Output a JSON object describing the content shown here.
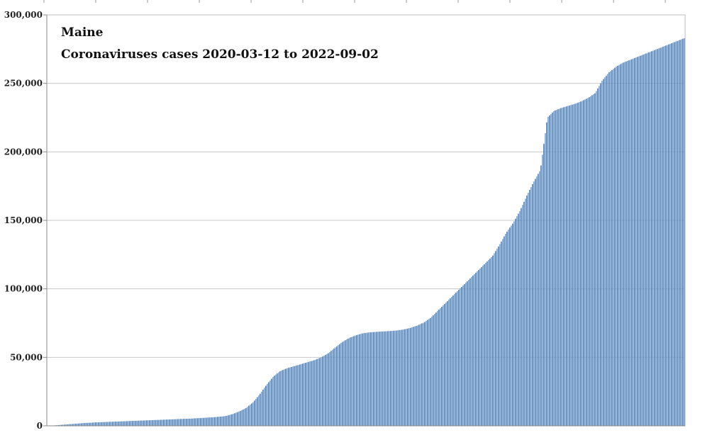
{
  "chart_data": {
    "type": "bar",
    "title": "Maine",
    "subtitle": "Coronaviruses cases 2020-03-12 to 2022-09-02",
    "xlabel": "",
    "ylabel": "",
    "x_range": [
      "2020-03-12",
      "2022-09-02"
    ],
    "ylim": [
      0,
      300000
    ],
    "yticks": [
      0,
      50000,
      100000,
      150000,
      200000,
      250000,
      300000
    ],
    "ytick_labels": [
      "0",
      "50,000",
      "100,000",
      "150,000",
      "200,000",
      "250,000",
      "300,000"
    ],
    "grid": true,
    "legend": "none",
    "colors": {
      "bar": "#7f9fc4",
      "bar_edge": "#5a7fa8",
      "grid": "#c8c8c8",
      "axis": "#888888"
    },
    "series": [
      {
        "values": [
          0,
          300,
          700,
          1100,
          1500,
          1900,
          2200,
          2500,
          2700,
          2900,
          3100,
          3300,
          3500,
          3700,
          3900,
          4100,
          4300,
          4500,
          4700,
          4900,
          5100,
          5300,
          5600,
          5900,
          6200,
          6600,
          7100,
          8500,
          10500,
          13000,
          17000,
          23000,
          30000,
          36000,
          40000,
          42000,
          43500,
          45000,
          46500,
          48000,
          50000,
          53000,
          57000,
          61000,
          64000,
          66000,
          67500,
          68200,
          68600,
          68900,
          69200,
          69600,
          70300,
          71500,
          73200,
          75500,
          79000,
          84000,
          89000,
          94000,
          99000,
          104000,
          109000,
          114000,
          119000,
          124000,
          132000,
          141000,
          148000,
          157000,
          168000,
          178000,
          187000,
          225000,
          230000,
          232000,
          233500,
          235000,
          237000,
          239500,
          243000,
          252000,
          258000,
          262000,
          265000,
          267000,
          269000,
          271000,
          273000,
          275000,
          277000,
          279000,
          281000,
          283000
        ]
      }
    ]
  }
}
